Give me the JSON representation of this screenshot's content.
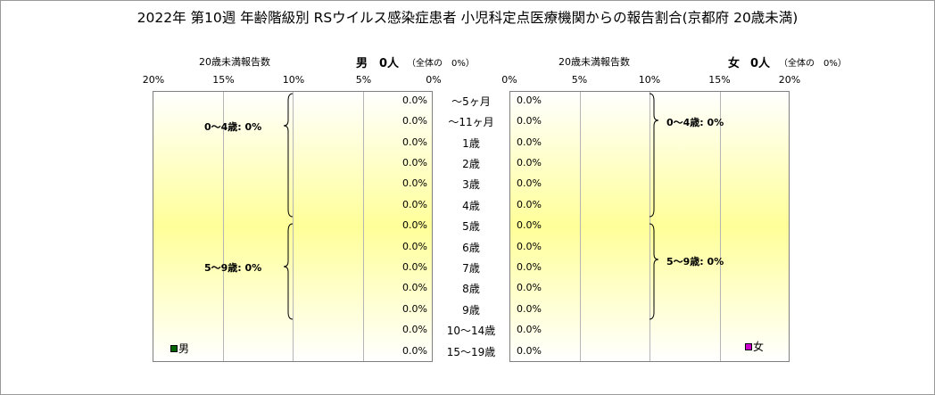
{
  "title": "2022年 第10週 年齢階級別 RSウイルス感染症患者 小児科定点医療機関からの報告割合(京都府 20歳未満)",
  "chart_data": {
    "type": "bar",
    "orientation": "horizontal-butterfly",
    "categories": [
      "～5ヶ月",
      "～11ヶ月",
      "1歳",
      "2歳",
      "3歳",
      "4歳",
      "5歳",
      "6歳",
      "7歳",
      "8歳",
      "9歳",
      "10～14歳",
      "15～19歳"
    ],
    "axis_ticks": [
      "20%",
      "15%",
      "10%",
      "5%",
      "0%"
    ],
    "axis_ticks_right": [
      "0%",
      "5%",
      "10%",
      "15%",
      "20%"
    ],
    "xlim": [
      0,
      20
    ],
    "grid": true,
    "series": [
      {
        "name": "男",
        "color": "#006400",
        "axis_label": "20歳未満報告数",
        "header_sex": "男",
        "header_count": "0人",
        "header_share": "（全体の　0%）",
        "values": [
          0,
          0,
          0,
          0,
          0,
          0,
          0,
          0,
          0,
          0,
          0,
          0,
          0
        ],
        "value_labels": [
          "0.0%",
          "0.0%",
          "0.0%",
          "0.0%",
          "0.0%",
          "0.0%",
          "0.0%",
          "0.0%",
          "0.0%",
          "0.0%",
          "0.0%",
          "0.0%",
          "0.0%"
        ],
        "group_labels": [
          "0～4歳: 0%",
          "5～9歳: 0%"
        ]
      },
      {
        "name": "女",
        "color": "#cc00cc",
        "axis_label": "20歳未満報告数",
        "header_sex": "女",
        "header_count": "0人",
        "header_share": "（全体の　0%）",
        "values": [
          0,
          0,
          0,
          0,
          0,
          0,
          0,
          0,
          0,
          0,
          0,
          0,
          0
        ],
        "value_labels": [
          "0.0%",
          "0.0%",
          "0.0%",
          "0.0%",
          "0.0%",
          "0.0%",
          "0.0%",
          "0.0%",
          "0.0%",
          "0.0%",
          "0.0%",
          "0.0%",
          "0.0%"
        ],
        "group_labels": [
          "0～4歳: 0%",
          "5～9歳: 0%"
        ]
      }
    ],
    "legend": {
      "male_position": "bottom-left",
      "female_position": "bottom-right"
    }
  }
}
